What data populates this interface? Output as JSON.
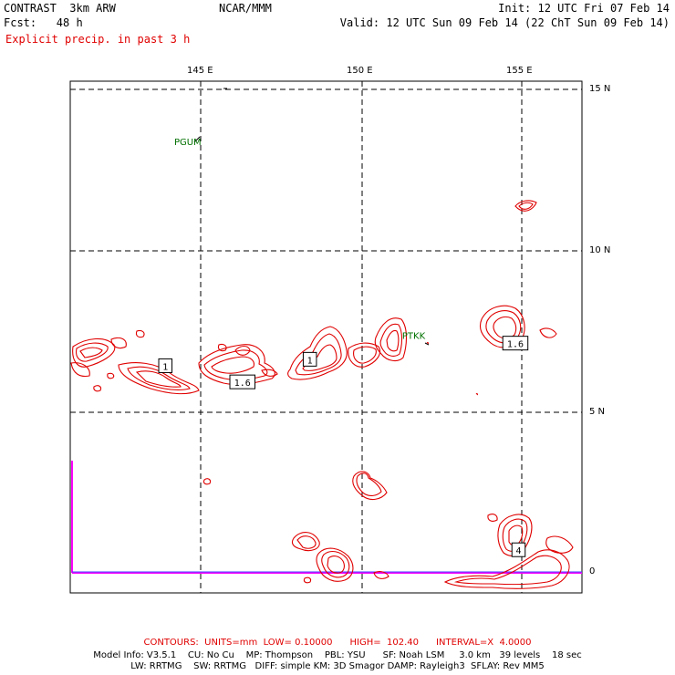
{
  "header": {
    "title": "CONTRAST  3km ARW",
    "center": "NCAR/MMM",
    "init": "Init: 12 UTC Fri 07 Feb 14",
    "fcst": "Fcst:   48 h",
    "valid": "Valid: 12 UTC Sun 09 Feb 14 (22 ChT Sun 09 Feb 14)",
    "field": "Explicit precip. in past 3 h"
  },
  "axes": {
    "lon_labels": [
      "145 E",
      "150 E",
      "155 E"
    ],
    "lat_labels": [
      "15 N",
      "10 N",
      "5 N",
      "0"
    ]
  },
  "stations": [
    {
      "id": "PGUM",
      "lon": 144.8,
      "lat": 13.5
    },
    {
      "id": "PTKK",
      "lon": 151.9,
      "lat": 7.5
    }
  ],
  "contour_labels": [
    {
      "text": "1",
      "lon": 143.9,
      "lat": 6.4
    },
    {
      "text": "1.6",
      "lon": 146.3,
      "lat": 5.9
    },
    {
      "text": "1",
      "lon": 148.4,
      "lat": 6.6
    },
    {
      "text": "1.6",
      "lon": 154.8,
      "lat": 7.1
    },
    {
      "text": "4",
      "lon": 154.9,
      "lat": 0.7
    }
  ],
  "footer": {
    "contours": "CONTOURS:  UNITS=mm  LOW= 0.10000      HIGH=  102.40      INTERVAL=X  4.0000",
    "model_line1": "Model Info: V3.5.1    CU: No Cu    MP: Thompson    PBL: YSU      SF: Noah LSM     3.0 km   39 levels    18 sec",
    "model_line2": "LW: RRTMG    SW: RRTMG   DIFF: simple KM: 3D Smagor DAMP: Rayleigh3  SFLAY: Rev MM5"
  },
  "colors": {
    "precip_contour": "#e00000",
    "grid": "#000000",
    "station": "#007000",
    "boundary": "#ff00ff",
    "equator": "#4040ff"
  }
}
